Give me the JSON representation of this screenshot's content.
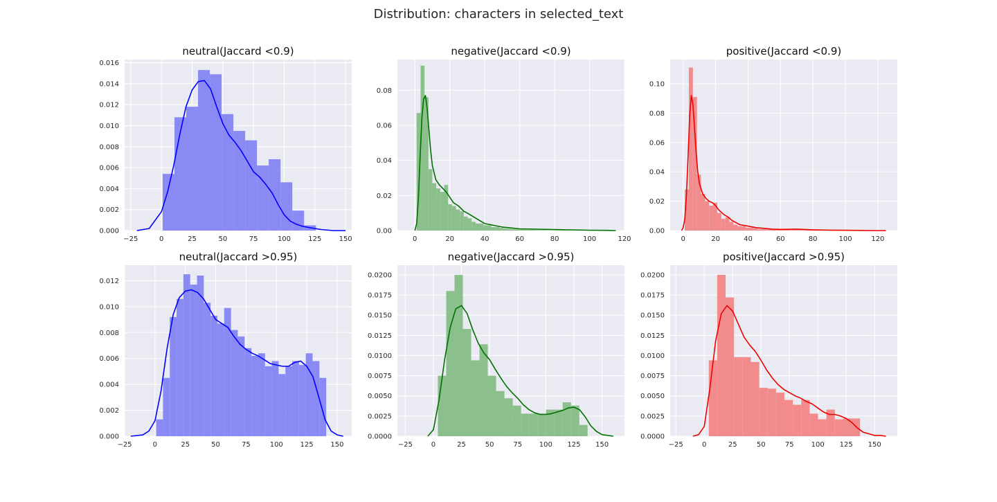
{
  "figure_title": "Distribution: characters in selected_text",
  "chart_data": [
    {
      "type": "bar",
      "title": "neutral(Jaccard <0.9)",
      "color": "#0000ff",
      "hist_color": "#8a8af5",
      "xlim": [
        -30,
        155
      ],
      "ylim": [
        0,
        0.0163
      ],
      "xticks": [
        -25,
        0,
        25,
        50,
        75,
        100,
        125,
        150
      ],
      "yticks": [
        0,
        0.002,
        0.004,
        0.006,
        0.008,
        0.01,
        0.012,
        0.014,
        0.016
      ],
      "ytick_decimals": 3,
      "bin_edges": [
        1,
        10.6,
        20.2,
        29.8,
        39.4,
        49,
        58.6,
        68.2,
        77.8,
        87.4,
        97,
        106.6,
        116.2,
        125.8
      ],
      "hist_values": [
        0.0054,
        0.0108,
        0.0118,
        0.0153,
        0.0149,
        0.0111,
        0.0095,
        0.0086,
        0.0062,
        0.0068,
        0.0046,
        0.0019,
        0.0005
      ],
      "kde_x": [
        -20,
        -10,
        0,
        5,
        10,
        15,
        20,
        25,
        30,
        35,
        40,
        45,
        50,
        55,
        60,
        65,
        70,
        75,
        80,
        85,
        90,
        95,
        100,
        105,
        110,
        115,
        120,
        125,
        130,
        140,
        150
      ],
      "kde_y": [
        0,
        0.0002,
        0.0018,
        0.0037,
        0.0062,
        0.0092,
        0.0118,
        0.0134,
        0.0142,
        0.0143,
        0.0135,
        0.0118,
        0.0102,
        0.0091,
        0.0084,
        0.0076,
        0.0066,
        0.0056,
        0.0051,
        0.0044,
        0.0036,
        0.0025,
        0.0015,
        0.0009,
        0.0006,
        0.0004,
        0.0003,
        0.0002,
        0.0001,
        0,
        0
      ]
    },
    {
      "type": "bar",
      "title": "negative(Jaccard <0.9)",
      "color": "#007000",
      "hist_color": "#8bbf8b",
      "xlim": [
        -10,
        120
      ],
      "ylim": [
        0,
        0.0975
      ],
      "xticks": [
        0,
        20,
        40,
        60,
        80,
        100,
        120
      ],
      "yticks": [
        0,
        0.02,
        0.04,
        0.06,
        0.08
      ],
      "ytick_decimals": 2,
      "bin_edges": [
        1,
        3.25,
        5.5,
        7.75,
        10,
        12.25,
        14.5,
        16.75,
        19,
        21.25,
        23.5,
        25.75,
        28,
        30.25,
        32.5,
        34.75,
        37,
        39.25,
        41.5,
        43.75,
        46,
        48.25,
        50.5,
        52.75,
        55,
        57.25,
        59.5,
        61.75,
        64,
        66.25,
        68.5,
        70.75,
        73,
        75.25,
        77.5,
        79.75,
        82,
        84.25,
        86.5,
        88.75,
        91,
        93.25,
        95.5,
        97.75,
        100,
        102.25
      ],
      "hist_values": [
        0.067,
        0.094,
        0.076,
        0.035,
        0.027,
        0.024,
        0.022,
        0.026,
        0.015,
        0.014,
        0.012,
        0.011,
        0.008,
        0.007,
        0.005,
        0.004,
        0.004,
        0.003,
        0.003,
        0.002,
        0.002,
        0.0015,
        0.0012,
        0.001,
        0.0008,
        0.0007,
        0.0006,
        0.0005,
        0.0004,
        0.0004,
        0.0003,
        0.0003,
        0.0003,
        0.0002,
        0.0002,
        0.0002,
        0.0002,
        0.0002,
        0.0001,
        0.0001,
        0.0001,
        0.0001,
        0.0001,
        0.0001,
        0.0001
      ],
      "kde_x": [
        0,
        1,
        2,
        3,
        4,
        5,
        6,
        7,
        8,
        9,
        10,
        12,
        14,
        16,
        18,
        20,
        22,
        25,
        28,
        30,
        35,
        40,
        45,
        50,
        55,
        60,
        70,
        80,
        90,
        100,
        110,
        115
      ],
      "kde_y": [
        0,
        0.004,
        0.018,
        0.042,
        0.064,
        0.075,
        0.077,
        0.07,
        0.058,
        0.046,
        0.037,
        0.029,
        0.026,
        0.024,
        0.022,
        0.019,
        0.016,
        0.014,
        0.011,
        0.01,
        0.007,
        0.004,
        0.003,
        0.002,
        0.0015,
        0.001,
        0.0008,
        0.0006,
        0.0004,
        0.0002,
        0.0001,
        0
      ]
    },
    {
      "type": "bar",
      "title": "positive(Jaccard <0.9)",
      "color": "#ee0000",
      "hist_color": "#f28c8c",
      "xlim": [
        -8,
        132
      ],
      "ylim": [
        0,
        0.1165
      ],
      "xticks": [
        0,
        20,
        40,
        60,
        80,
        100,
        120
      ],
      "yticks": [
        0,
        0.02,
        0.04,
        0.06,
        0.08,
        0.1
      ],
      "ytick_decimals": 2,
      "bin_edges": [
        1,
        3.5,
        6,
        8.5,
        11,
        13.5,
        16,
        18.5,
        21,
        23.5,
        26,
        28.5,
        31,
        33.5,
        36,
        38.5,
        41,
        43.5,
        46,
        48.5,
        51,
        53.5,
        56,
        58.5,
        61,
        63.5,
        66,
        68.5,
        71,
        73.5,
        76,
        78.5,
        81,
        83.5,
        86,
        88.5,
        91,
        93.5,
        96,
        98.5,
        101,
        103.5,
        106,
        108.5,
        111,
        113.5,
        116
      ],
      "hist_values": [
        0.028,
        0.111,
        0.091,
        0.038,
        0.025,
        0.02,
        0.017,
        0.019,
        0.012,
        0.008,
        0.009,
        0.006,
        0.004,
        0.003,
        0.003,
        0.002,
        0.002,
        0.0015,
        0.001,
        0.001,
        0.0008,
        0.0008,
        0.0006,
        0.0006,
        0.0005,
        0.0005,
        0.0004,
        0.0004,
        0.0004,
        0.0003,
        0.0003,
        0.0003,
        0.0002,
        0.0002,
        0.0002,
        0.0002,
        0.0002,
        0.0001,
        0.0001,
        0.0001,
        0.0001,
        0.0001,
        0.0001,
        0.0001,
        0.0001,
        0.0001
      ],
      "kde_x": [
        -1,
        0,
        1,
        2,
        3,
        4,
        5,
        6,
        7,
        8,
        9,
        10,
        12,
        14,
        16,
        18,
        20,
        22,
        25,
        28,
        30,
        35,
        40,
        45,
        50,
        55,
        60,
        70,
        80,
        90,
        100,
        110,
        120,
        125
      ],
      "kde_y": [
        0,
        0.002,
        0.008,
        0.024,
        0.05,
        0.078,
        0.092,
        0.086,
        0.07,
        0.053,
        0.04,
        0.032,
        0.025,
        0.022,
        0.02,
        0.019,
        0.017,
        0.014,
        0.011,
        0.009,
        0.007,
        0.004,
        0.003,
        0.002,
        0.0015,
        0.001,
        0.0008,
        0.001,
        0.0005,
        0.0003,
        0.0002,
        0.0001,
        0,
        0
      ]
    },
    {
      "type": "bar",
      "title": "neutral(Jaccard >0.95)",
      "color": "#0000ff",
      "hist_color": "#8a8af5",
      "xlim": [
        -25,
        162
      ],
      "ylim": [
        0,
        0.0132
      ],
      "xticks": [
        -25,
        0,
        25,
        50,
        75,
        100,
        125,
        150
      ],
      "yticks": [
        0,
        0.002,
        0.004,
        0.006,
        0.008,
        0.01,
        0.012
      ],
      "ytick_decimals": 3,
      "bin_edges": [
        1,
        6.6,
        12.2,
        17.8,
        23.4,
        29,
        34.6,
        40.2,
        45.8,
        51.4,
        57,
        62.6,
        68.2,
        73.8,
        79.4,
        85,
        90.6,
        96.2,
        101.8,
        107.4,
        113,
        118.6,
        124.2,
        129.8,
        135.4,
        141
      ],
      "hist_values": [
        0.0013,
        0.0045,
        0.0092,
        0.0106,
        0.0125,
        0.0117,
        0.0124,
        0.0103,
        0.0093,
        0.0087,
        0.0099,
        0.0082,
        0.0077,
        0.0068,
        0.0062,
        0.0064,
        0.0054,
        0.0058,
        0.0048,
        0.0054,
        0.0058,
        0.0055,
        0.0064,
        0.0058,
        0.0045
      ],
      "kde_x": [
        -20,
        -10,
        -5,
        0,
        5,
        10,
        15,
        20,
        25,
        30,
        35,
        40,
        45,
        50,
        55,
        60,
        65,
        70,
        75,
        80,
        85,
        90,
        95,
        100,
        105,
        110,
        115,
        120,
        125,
        130,
        135,
        140,
        145,
        150,
        155
      ],
      "kde_y": [
        0,
        0.0001,
        0.0004,
        0.0012,
        0.0035,
        0.0068,
        0.0094,
        0.0107,
        0.0112,
        0.0113,
        0.0111,
        0.0106,
        0.0098,
        0.009,
        0.0087,
        0.0084,
        0.0077,
        0.0071,
        0.0067,
        0.0064,
        0.0062,
        0.0059,
        0.0056,
        0.0055,
        0.0054,
        0.0054,
        0.0057,
        0.0058,
        0.0054,
        0.0046,
        0.003,
        0.0013,
        0.0004,
        0.0001,
        0
      ]
    },
    {
      "type": "bar",
      "title": "negative(Jaccard >0.95)",
      "color": "#007000",
      "hist_color": "#8bbf8b",
      "xlim": [
        -32,
        170
      ],
      "ylim": [
        0,
        0.0212
      ],
      "xticks": [
        -25,
        0,
        25,
        50,
        75,
        100,
        125,
        150
      ],
      "yticks": [
        0,
        0.0025,
        0.005,
        0.0075,
        0.01,
        0.0125,
        0.015,
        0.0175,
        0.02
      ],
      "ytick_decimals": 4,
      "bin_edges": [
        4,
        11.4,
        18.8,
        26.2,
        33.6,
        41,
        48.4,
        55.8,
        63.2,
        70.6,
        78,
        85.4,
        92.8,
        100.2,
        107.6,
        115,
        122.4,
        129.8,
        137.2
      ],
      "hist_values": [
        0.0075,
        0.018,
        0.02,
        0.0133,
        0.0094,
        0.0114,
        0.0075,
        0.0056,
        0.0047,
        0.0038,
        0.0028,
        0.0028,
        0.0028,
        0.0033,
        0.0033,
        0.0042,
        0.0038,
        0.0014
      ],
      "kde_x": [
        -5,
        0,
        5,
        10,
        15,
        20,
        25,
        30,
        35,
        40,
        45,
        50,
        55,
        60,
        65,
        70,
        75,
        80,
        85,
        90,
        95,
        100,
        105,
        110,
        115,
        120,
        125,
        130,
        135,
        140,
        145,
        150,
        155,
        160
      ],
      "kde_y": [
        0,
        0.0008,
        0.0045,
        0.0095,
        0.0135,
        0.0158,
        0.0162,
        0.0152,
        0.0132,
        0.0115,
        0.0103,
        0.0095,
        0.0083,
        0.0072,
        0.0062,
        0.0054,
        0.0047,
        0.0039,
        0.0033,
        0.0029,
        0.0027,
        0.0027,
        0.0028,
        0.003,
        0.0032,
        0.0035,
        0.0036,
        0.0033,
        0.0024,
        0.0013,
        0.0006,
        0.0002,
        0.0001,
        0
      ]
    },
    {
      "type": "bar",
      "title": "positive(Jaccard >0.95)",
      "color": "#ee0000",
      "hist_color": "#f28c8c",
      "xlim": [
        -30,
        170
      ],
      "ylim": [
        0,
        0.0212
      ],
      "xticks": [
        -25,
        0,
        25,
        50,
        75,
        100,
        125,
        150
      ],
      "yticks": [
        0,
        0.0025,
        0.005,
        0.0075,
        0.01,
        0.0125,
        0.015,
        0.0175,
        0.02
      ],
      "ytick_decimals": 4,
      "bin_edges": [
        4,
        11.4,
        18.8,
        26.2,
        33.6,
        41,
        48.4,
        55.8,
        63.2,
        70.6,
        78,
        85.4,
        92.8,
        100.2,
        107.6,
        115,
        122.4,
        129.8,
        137.2
      ],
      "hist_values": [
        0.0094,
        0.02,
        0.0172,
        0.0098,
        0.0098,
        0.0092,
        0.006,
        0.0059,
        0.0054,
        0.0045,
        0.0039,
        0.0045,
        0.0028,
        0.0021,
        0.0033,
        0.0021,
        0.0022,
        0.0022
      ],
      "kde_x": [
        -10,
        -5,
        0,
        5,
        10,
        15,
        20,
        25,
        30,
        35,
        40,
        45,
        50,
        55,
        60,
        65,
        70,
        75,
        80,
        85,
        90,
        95,
        100,
        105,
        110,
        115,
        120,
        125,
        130,
        135,
        140,
        145,
        150,
        155,
        160
      ],
      "kde_y": [
        0,
        0.0002,
        0.0012,
        0.006,
        0.0118,
        0.0152,
        0.0162,
        0.0155,
        0.0139,
        0.0123,
        0.0113,
        0.0105,
        0.0094,
        0.0082,
        0.0072,
        0.0064,
        0.0058,
        0.0054,
        0.005,
        0.0047,
        0.0043,
        0.004,
        0.0035,
        0.003,
        0.0027,
        0.0027,
        0.0025,
        0.0022,
        0.0017,
        0.001,
        0.0005,
        0.0003,
        0.0001,
        0.0001,
        0
      ]
    }
  ]
}
